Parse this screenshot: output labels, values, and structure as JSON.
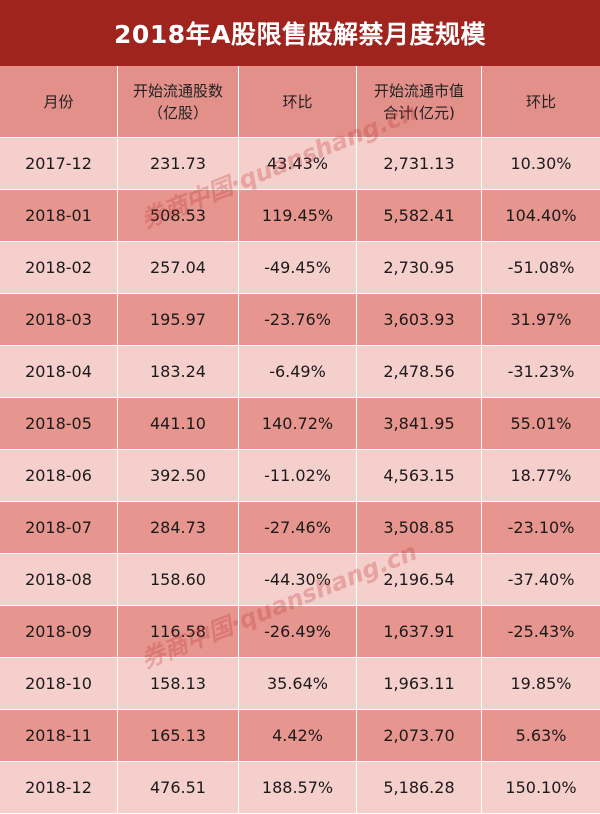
{
  "title": "2018年A股限售股解禁月度规模",
  "columns": [
    "月份",
    "开始流通股数\n（亿股）",
    "环比",
    "开始流通市值\n合计(亿元)",
    "环比"
  ],
  "rows": [
    [
      "2017-12",
      "231.73",
      "43.43%",
      "2,731.13",
      "10.30%"
    ],
    [
      "2018-01",
      "508.53",
      "119.45%",
      "5,582.41",
      "104.40%"
    ],
    [
      "2018-02",
      "257.04",
      "-49.45%",
      "2,730.95",
      "-51.08%"
    ],
    [
      "2018-03",
      "195.97",
      "-23.76%",
      "3,603.93",
      "31.97%"
    ],
    [
      "2018-04",
      "183.24",
      "-6.49%",
      "2,478.56",
      "-31.23%"
    ],
    [
      "2018-05",
      "441.10",
      "140.72%",
      "3,841.95",
      "55.01%"
    ],
    [
      "2018-06",
      "392.50",
      "-11.02%",
      "4,563.15",
      "18.77%"
    ],
    [
      "2018-07",
      "284.73",
      "-27.46%",
      "3,508.85",
      "-23.10%"
    ],
    [
      "2018-08",
      "158.60",
      "-44.30%",
      "2,196.54",
      "-37.40%"
    ],
    [
      "2018-09",
      "116.58",
      "-26.49%",
      "1,637.91",
      "-25.43%"
    ],
    [
      "2018-10",
      "158.13",
      "35.64%",
      "1,963.11",
      "19.85%"
    ],
    [
      "2018-11",
      "165.13",
      "4.42%",
      "2,073.70",
      "5.63%"
    ],
    [
      "2018-12",
      "476.51",
      "188.57%",
      "5,186.28",
      "150.10%"
    ]
  ],
  "watermark": "券商中国·quanshang.cn",
  "colors": {
    "title_bg": "#a0241e",
    "row_dark": "#e6958f",
    "row_light": "#f5cfcc"
  }
}
